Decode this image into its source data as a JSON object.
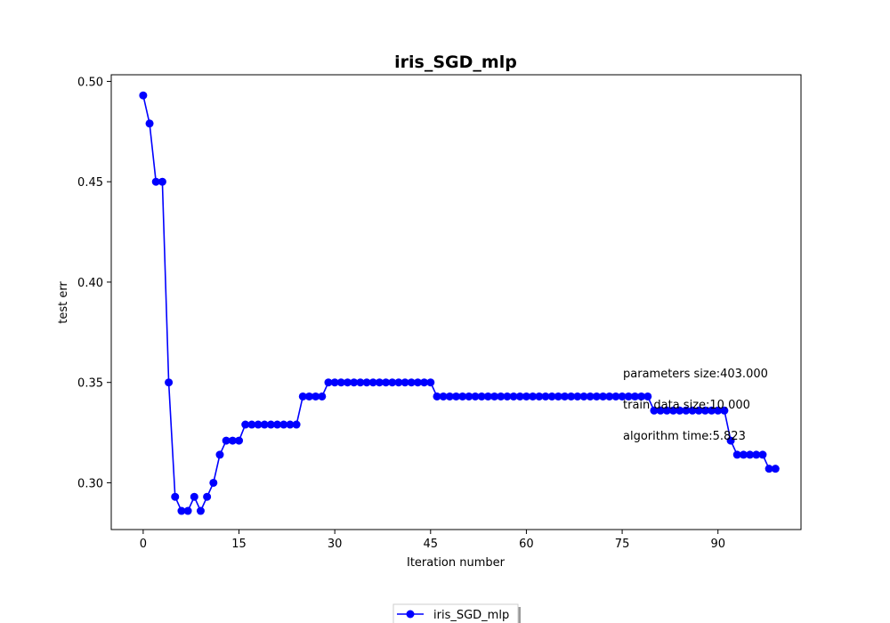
{
  "chart_data": {
    "type": "line",
    "title": "iris_SGD_mlp",
    "xlabel": "Iteration number",
    "ylabel": "test err",
    "xlim": [
      -5,
      103
    ],
    "ylim": [
      0.2767,
      0.5033
    ],
    "xticks": [
      0,
      15,
      30,
      45,
      60,
      75,
      90
    ],
    "yticks": [
      0.3,
      0.35,
      0.4,
      0.45,
      0.5
    ],
    "ytick_labels": [
      "0.30",
      "0.35",
      "0.40",
      "0.45",
      "0.50"
    ],
    "grid": false,
    "legend_position": "bottom-center",
    "annotations": [
      "parameters size:403.000",
      "train data size:10.000",
      "algorithm time:5.823"
    ],
    "series": [
      {
        "name": "iris_SGD_mlp",
        "color": "#0000ff",
        "marker": "circle",
        "x": [
          0,
          1,
          2,
          3,
          4,
          5,
          6,
          7,
          8,
          9,
          10,
          11,
          12,
          13,
          14,
          15,
          16,
          17,
          18,
          19,
          20,
          21,
          22,
          23,
          24,
          25,
          26,
          27,
          28,
          29,
          30,
          31,
          32,
          33,
          34,
          35,
          36,
          37,
          38,
          39,
          40,
          41,
          42,
          43,
          44,
          45,
          46,
          47,
          48,
          49,
          50,
          51,
          52,
          53,
          54,
          55,
          56,
          57,
          58,
          59,
          60,
          61,
          62,
          63,
          64,
          65,
          66,
          67,
          68,
          69,
          70,
          71,
          72,
          73,
          74,
          75,
          76,
          77,
          78,
          79,
          80,
          81,
          82,
          83,
          84,
          85,
          86,
          87,
          88,
          89,
          90,
          91,
          92,
          93,
          94,
          95,
          96,
          97,
          98,
          99
        ],
        "y": [
          0.493,
          0.479,
          0.45,
          0.45,
          0.35,
          0.293,
          0.286,
          0.286,
          0.293,
          0.286,
          0.293,
          0.3,
          0.314,
          0.321,
          0.321,
          0.321,
          0.329,
          0.329,
          0.329,
          0.329,
          0.329,
          0.329,
          0.329,
          0.329,
          0.329,
          0.343,
          0.343,
          0.343,
          0.343,
          0.35,
          0.35,
          0.35,
          0.35,
          0.35,
          0.35,
          0.35,
          0.35,
          0.35,
          0.35,
          0.35,
          0.35,
          0.35,
          0.35,
          0.35,
          0.35,
          0.35,
          0.343,
          0.343,
          0.343,
          0.343,
          0.343,
          0.343,
          0.343,
          0.343,
          0.343,
          0.343,
          0.343,
          0.343,
          0.343,
          0.343,
          0.343,
          0.343,
          0.343,
          0.343,
          0.343,
          0.343,
          0.343,
          0.343,
          0.343,
          0.343,
          0.343,
          0.343,
          0.343,
          0.343,
          0.343,
          0.343,
          0.343,
          0.343,
          0.343,
          0.343,
          0.336,
          0.336,
          0.336,
          0.336,
          0.336,
          0.336,
          0.336,
          0.336,
          0.336,
          0.336,
          0.336,
          0.336,
          0.321,
          0.314,
          0.314,
          0.314,
          0.314,
          0.314,
          0.307,
          0.307
        ]
      }
    ]
  }
}
